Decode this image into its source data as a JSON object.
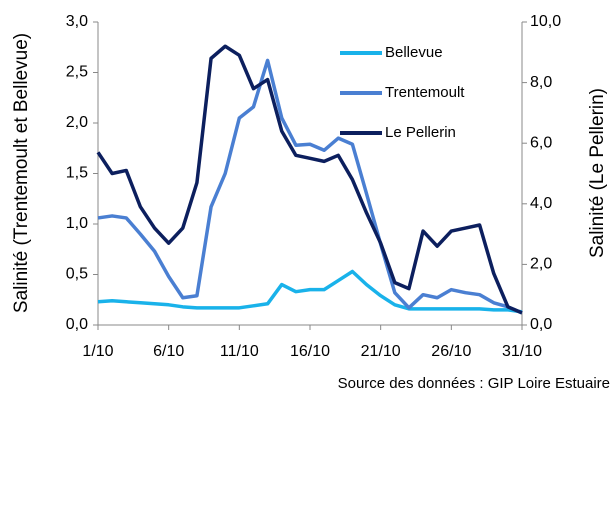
{
  "chart_data": {
    "type": "line",
    "categories": [
      "1/10",
      null,
      null,
      null,
      null,
      "6/10",
      null,
      null,
      null,
      null,
      "11/10",
      null,
      null,
      null,
      null,
      "16/10",
      null,
      null,
      null,
      null,
      "21/10",
      null,
      null,
      null,
      null,
      "26/10",
      null,
      null,
      null,
      null,
      "31/10"
    ],
    "ylabel": "Salinité (Trentemoult et Bellevue)",
    "y2label": "Salinité (Le Pellerin)",
    "ylim": [
      0,
      3
    ],
    "yticks": [
      {
        "value": 0,
        "label": "0,0"
      },
      {
        "value": 0.5,
        "label": "0,5"
      },
      {
        "value": 1,
        "label": "1,0"
      },
      {
        "value": 1.5,
        "label": "1,5"
      },
      {
        "value": 2,
        "label": "2,0"
      },
      {
        "value": 2.5,
        "label": "2,5"
      },
      {
        "value": 3,
        "label": "3,0"
      }
    ],
    "y2lim": [
      0,
      10
    ],
    "y2ticks": [
      {
        "value": 0,
        "label": "0,0"
      },
      {
        "value": 2,
        "label": "2,0"
      },
      {
        "value": 4,
        "label": "4,0"
      },
      {
        "value": 6,
        "label": "6,0"
      },
      {
        "value": 8,
        "label": "8,0"
      },
      {
        "value": 10,
        "label": "10,0"
      }
    ],
    "grid": false,
    "legend": "upper right",
    "series": [
      {
        "name": "Bellevue",
        "color": "#19b2ea",
        "values": [
          0.23,
          0.24,
          0.23,
          0.22,
          0.21,
          0.2,
          0.18,
          0.17,
          0.17,
          0.17,
          0.17,
          0.19,
          0.21,
          0.4,
          0.33,
          0.35,
          0.35,
          0.44,
          0.53,
          0.4,
          0.29,
          0.2,
          0.16,
          0.16,
          0.16,
          0.16,
          0.16,
          0.16,
          0.15,
          0.15,
          0.13
        ]
      },
      {
        "name": "Trentemoult",
        "color": "#4a7fd2",
        "values": [
          1.06,
          1.08,
          1.06,
          0.9,
          0.73,
          0.48,
          0.27,
          0.29,
          1.17,
          1.5,
          2.05,
          2.16,
          2.62,
          2.05,
          1.78,
          1.79,
          1.73,
          1.85,
          1.79,
          1.3,
          0.8,
          0.32,
          0.17,
          0.3,
          0.27,
          0.35,
          0.32,
          0.3,
          0.22,
          0.18,
          0.12
        ]
      },
      {
        "name": "Le Pellerin",
        "color": "#0c1f5e",
        "axis": "y2",
        "values": [
          5.7,
          5.0,
          5.1,
          3.9,
          3.2,
          2.7,
          3.2,
          4.7,
          8.8,
          9.2,
          8.9,
          7.8,
          8.1,
          6.4,
          5.6,
          5.5,
          5.4,
          5.6,
          4.8,
          3.7,
          2.7,
          1.4,
          1.2,
          3.1,
          2.6,
          3.1,
          3.2,
          3.3,
          1.7,
          0.6,
          0.4
        ]
      }
    ],
    "source": "Source des données : GIP Loire Estuaire"
  }
}
